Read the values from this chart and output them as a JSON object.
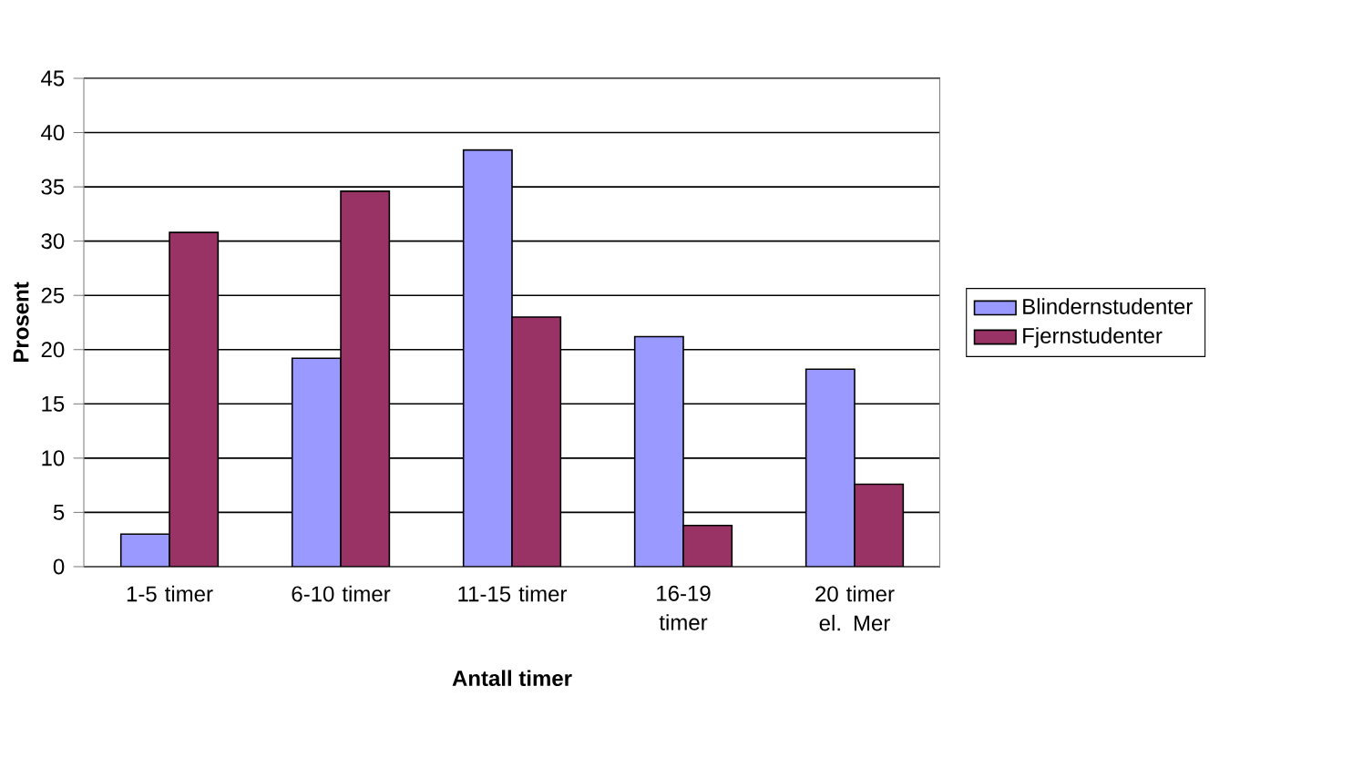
{
  "chart_data": {
    "type": "bar",
    "xlabel": "Antall timer",
    "ylabel": "Prosent",
    "categories": [
      "1-5 timer",
      "6-10 timer",
      "11-15 timer",
      "16-19 timer",
      "20 timer el. Mer"
    ],
    "series": [
      {
        "name": "Blindernstudenter",
        "color": "#9999ff",
        "values": [
          3.0,
          19.2,
          38.4,
          21.2,
          18.2
        ]
      },
      {
        "name": "Fjernstudenter",
        "color": "#993366",
        "values": [
          30.8,
          34.6,
          23.0,
          3.8,
          7.6
        ]
      }
    ],
    "ylim": [
      0,
      45
    ],
    "yticks": [
      0,
      5,
      10,
      15,
      20,
      25,
      30,
      35,
      40,
      45
    ],
    "grid": "y",
    "legend": "right"
  }
}
